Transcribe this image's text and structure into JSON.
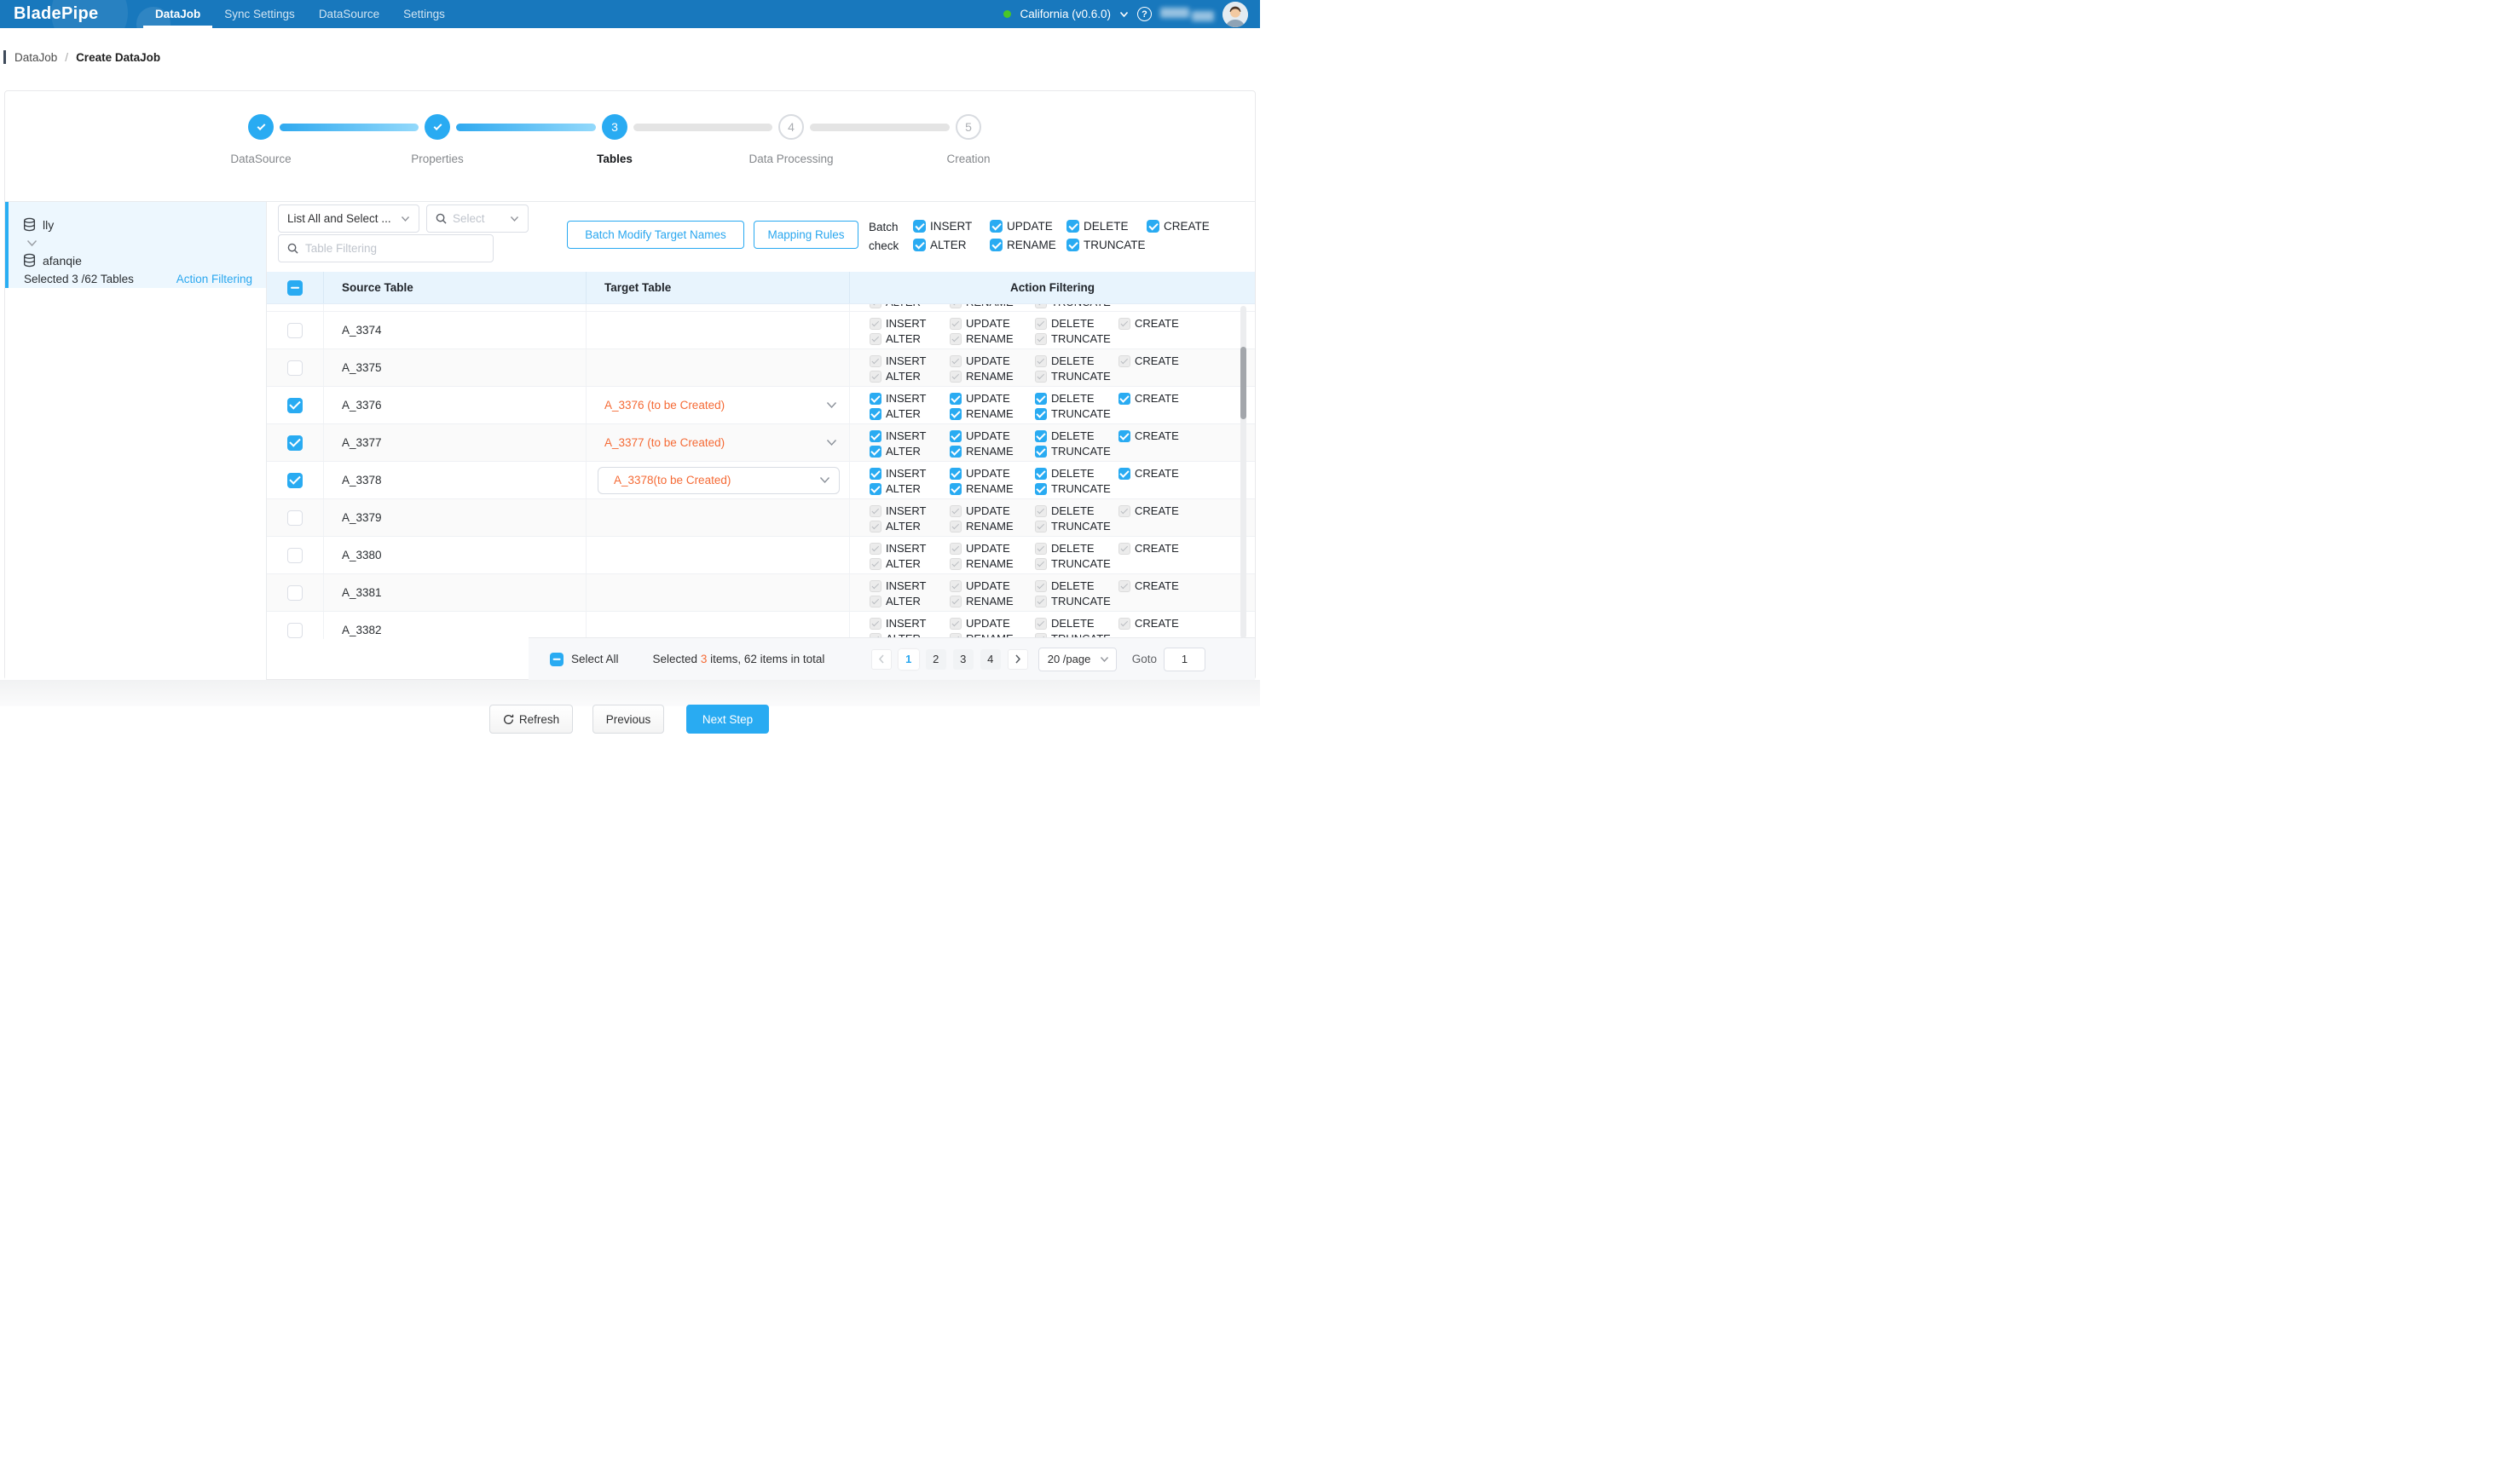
{
  "colors": {
    "topbar": "#1878bd",
    "accent_blue": "#29abf2",
    "link_blue": "#2aa7ef",
    "orange": "#f56a35",
    "header_bg": "#e8f4fd",
    "highlight_bg": "#edf7fe",
    "status_green": "#49c628"
  },
  "topbar": {
    "logo": "BladePipe",
    "nav": [
      {
        "label": "DataJob",
        "active": true
      },
      {
        "label": "Sync Settings",
        "active": false
      },
      {
        "label": "DataSource",
        "active": false
      },
      {
        "label": "Settings",
        "active": false
      }
    ],
    "region": "California (v0.6.0)",
    "help": "?"
  },
  "breadcrumb": {
    "parent": "DataJob",
    "separator": "/",
    "current": "Create DataJob"
  },
  "stepper": {
    "steps": [
      {
        "label": "DataSource",
        "state": "done"
      },
      {
        "label": "Properties",
        "state": "done"
      },
      {
        "label": "Tables",
        "state": "active",
        "number": "3"
      },
      {
        "label": "Data Processing",
        "state": "upcoming",
        "number": "4"
      },
      {
        "label": "Creation",
        "state": "upcoming",
        "number": "5"
      }
    ]
  },
  "source_panel": {
    "source_db": "lly",
    "target_db": "afanqie",
    "selection_summary": "Selected 3 /62 Tables",
    "action_filtering_link": "Action Filtering"
  },
  "toolbar": {
    "list_mode_value": "List All and Select ...",
    "select_placeholder": "Select",
    "filter_placeholder": "Table Filtering",
    "batch_modify_button": "Batch Modify Target Names",
    "mapping_rules_button": "Mapping Rules",
    "batch_check_line1": "Batch",
    "batch_check_line2": "check",
    "batch_actions_row1": [
      "INSERT",
      "UPDATE",
      "DELETE",
      "CREATE"
    ],
    "batch_actions_row2": [
      "ALTER",
      "RENAME",
      "TRUNCATE"
    ]
  },
  "table": {
    "headers": {
      "source": "Source Table",
      "target": "Target Table",
      "actions": "Action Filtering"
    },
    "action_labels_row1": [
      "INSERT",
      "UPDATE",
      "DELETE",
      "CREATE"
    ],
    "action_labels_row2": [
      "ALTER",
      "RENAME",
      "TRUNCATE"
    ],
    "rows": [
      {
        "source": "A_3374",
        "selected": false,
        "target": "",
        "target_style": "none"
      },
      {
        "source": "A_3375",
        "selected": false,
        "target": "",
        "target_style": "none"
      },
      {
        "source": "A_3376",
        "selected": true,
        "target": "A_3376 (to be Created)",
        "target_style": "plain"
      },
      {
        "source": "A_3377",
        "selected": true,
        "target": "A_3377 (to be Created)",
        "target_style": "plain"
      },
      {
        "source": "A_3378",
        "selected": true,
        "target": "A_3378(to be Created)",
        "target_style": "boxed"
      },
      {
        "source": "A_3379",
        "selected": false,
        "target": "",
        "target_style": "none"
      },
      {
        "source": "A_3380",
        "selected": false,
        "target": "",
        "target_style": "none"
      },
      {
        "source": "A_3381",
        "selected": false,
        "target": "",
        "target_style": "none"
      },
      {
        "source": "A_3382",
        "selected": false,
        "target": "",
        "target_style": "none",
        "partial": true
      }
    ]
  },
  "footer": {
    "select_all": "Select All",
    "summary_prefix": "Selected ",
    "summary_count": "3",
    "summary_suffix": " items, 62 items in total",
    "pages": [
      "1",
      "2",
      "3",
      "4"
    ],
    "active_page": "1",
    "page_size": "20 /page",
    "goto_label": "Goto",
    "goto_value": "1"
  },
  "actions_bar": {
    "refresh": "Refresh",
    "previous": "Previous",
    "next": "Next Step"
  }
}
